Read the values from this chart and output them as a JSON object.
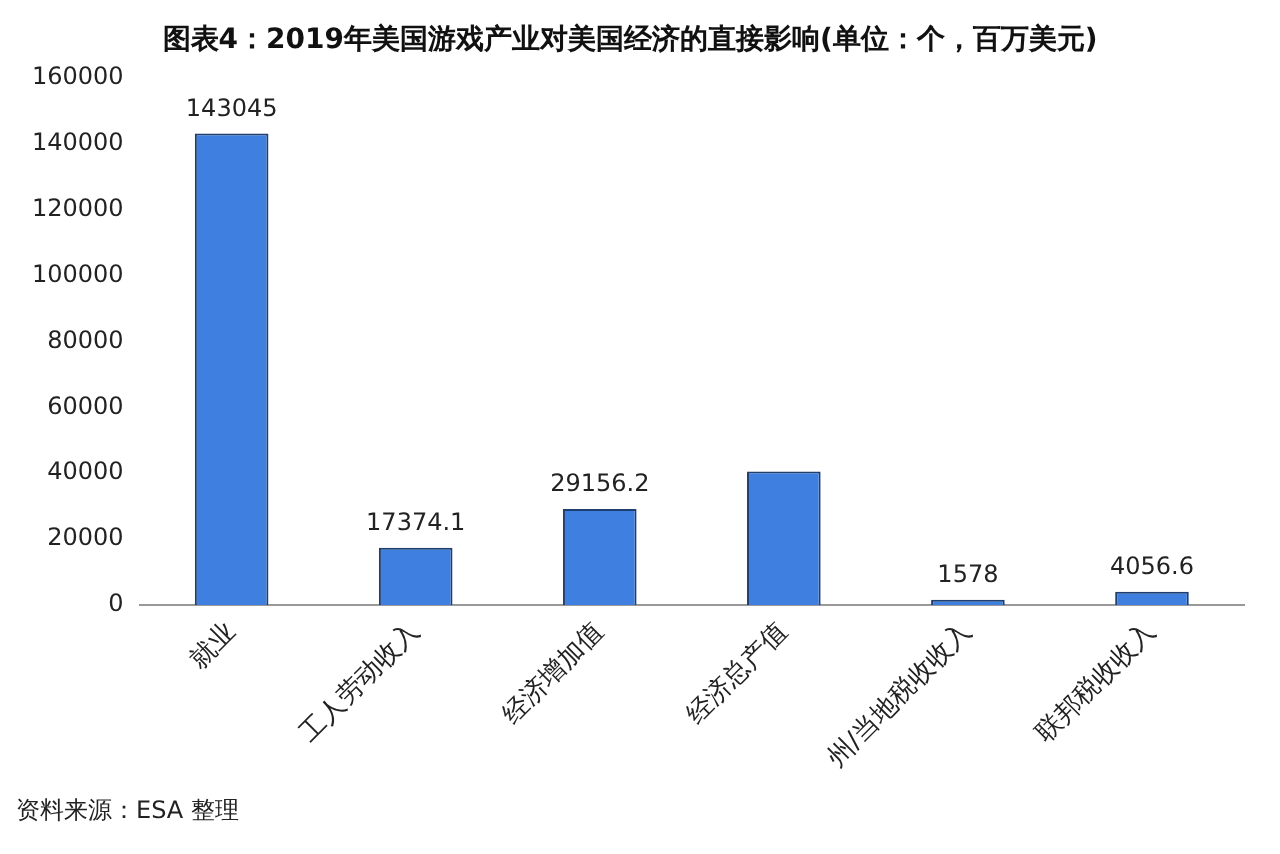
{
  "chart_data": {
    "type": "bar",
    "title": "图表4：2019年美国游戏产业对美国经济的直接影响(单位：个，百万美元)",
    "categories": [
      "就业",
      "工人劳动收入",
      "经济增加值",
      "经济总产值",
      "州/当地税收收入",
      "联邦税收收入"
    ],
    "values": [
      143045,
      17374.1,
      29156.2,
      40500,
      1578,
      4056.6
    ],
    "value_labels": [
      "143045",
      "17374.1",
      "29156.2",
      null,
      "1578",
      "4056.6"
    ],
    "color": "#3f7fe0",
    "ylim": [
      0,
      160000
    ],
    "yticks": [
      0,
      20000,
      40000,
      60000,
      80000,
      100000,
      120000,
      140000,
      160000
    ],
    "grid": false,
    "legend": false,
    "annotations": [
      "资料来源：ESA 整理"
    ]
  }
}
